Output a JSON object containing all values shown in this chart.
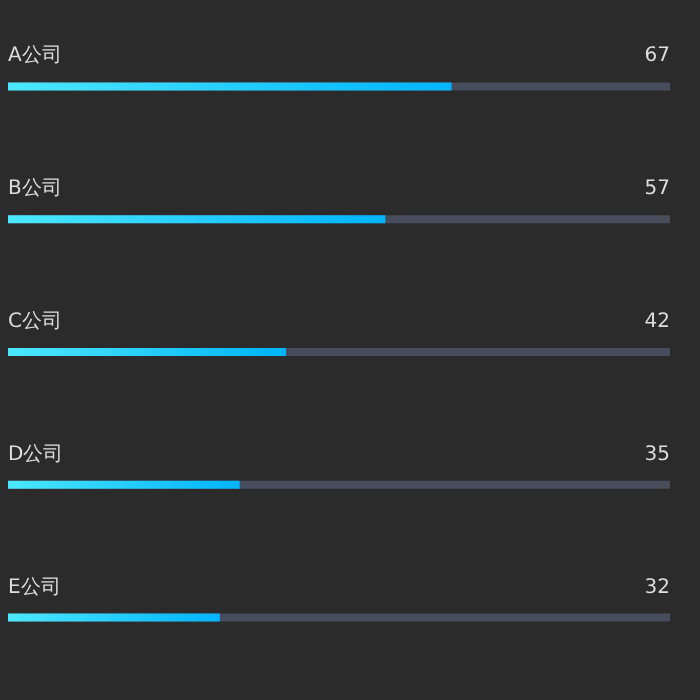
{
  "chart_data": {
    "type": "bar",
    "orientation": "horizontal",
    "categories": [
      "A公司",
      "B公司",
      "C公司",
      "D公司",
      "E公司"
    ],
    "series": [
      {
        "color": "#00b4ff",
        "values": [
          67,
          57,
          42,
          35,
          32
        ]
      }
    ],
    "xlim": [
      0,
      100
    ],
    "tick_labels": false,
    "data_labels": true
  }
}
